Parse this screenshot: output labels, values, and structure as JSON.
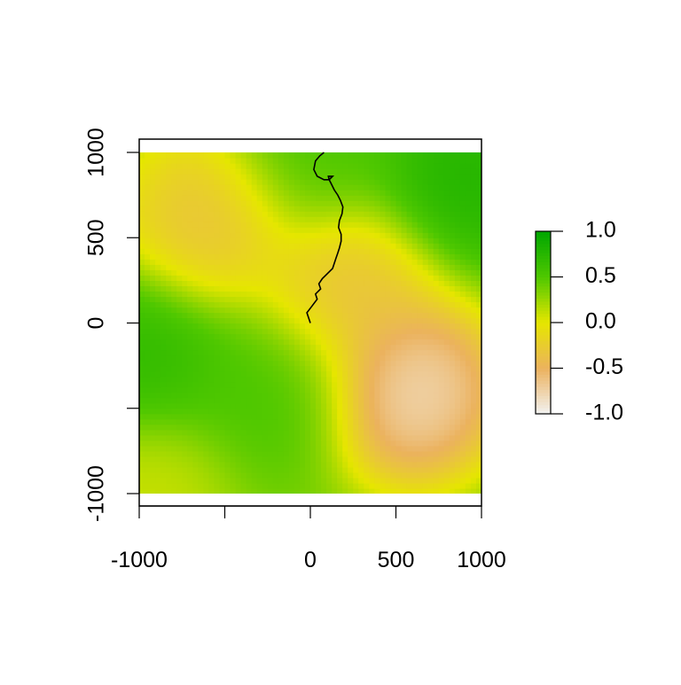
{
  "chart_data": {
    "type": "heatmap",
    "title": "",
    "xlabel": "",
    "ylabel": "",
    "xlim": [
      -1000,
      1000
    ],
    "ylim": [
      -1000,
      1000
    ],
    "x_ticks": [
      -1000,
      -500,
      0,
      500,
      1000
    ],
    "x_tick_labels": [
      "-1000",
      "",
      "0",
      "500",
      "1000"
    ],
    "y_ticks": [
      -1000,
      -500,
      0,
      500,
      1000
    ],
    "y_tick_labels": [
      "-1000",
      "",
      "0",
      "500",
      "1000"
    ],
    "colorbar": {
      "range": [
        -1.0,
        1.0
      ],
      "ticks": [
        1.0,
        0.5,
        0.0,
        -0.5,
        -1.0
      ],
      "tick_labels": [
        "1.0",
        "0.5",
        "0.0",
        "-0.5",
        "-1.0"
      ],
      "placement": "right",
      "stops": [
        {
          "value": 1.0,
          "color": "#00a600"
        },
        {
          "value": 0.5,
          "color": "#4fc800"
        },
        {
          "value": 0.0,
          "color": "#e6e600"
        },
        {
          "value": -0.5,
          "color": "#ebb25e"
        },
        {
          "value": -1.0,
          "color": "#f2f2f2"
        }
      ]
    },
    "field_features": [
      {
        "x": -600,
        "y": 620,
        "value": -0.45
      },
      {
        "x": 230,
        "y": 200,
        "value": -0.45
      },
      {
        "x": 600,
        "y": -400,
        "value": -1.0
      },
      {
        "x": -1000,
        "y": -200,
        "value": 0.75
      },
      {
        "x": -200,
        "y": -400,
        "value": 0.55
      },
      {
        "x": 900,
        "y": 850,
        "value": 0.85
      },
      {
        "x": 0,
        "y": 1000,
        "value": 0.55
      },
      {
        "x": -1000,
        "y": -1000,
        "value": 0.05
      }
    ],
    "track": {
      "x": [
        0,
        -20,
        10,
        40,
        30,
        60,
        50,
        70,
        100,
        130,
        140,
        150,
        160,
        170,
        180,
        180,
        165,
        170,
        185,
        190,
        175,
        160,
        140,
        120,
        110,
        105,
        130,
        110,
        80,
        40,
        20,
        30,
        55,
        80
      ],
      "y": [
        0,
        60,
        100,
        140,
        170,
        200,
        230,
        260,
        290,
        320,
        350,
        380,
        410,
        440,
        480,
        520,
        560,
        600,
        640,
        680,
        720,
        750,
        780,
        820,
        840,
        860,
        860,
        840,
        840,
        860,
        900,
        950,
        980,
        1000
      ]
    }
  }
}
